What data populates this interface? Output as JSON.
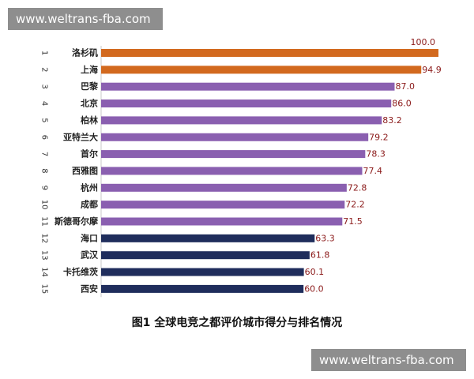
{
  "watermarks": {
    "top": "www.weltrans-fba.com",
    "bottom": "www.weltrans-fba.com"
  },
  "caption": "图1  全球电竞之都评价城市得分与排名情况",
  "colors": {
    "orange": "#d2691e",
    "purple": "#8a5fb0",
    "navy": "#1f2d5c",
    "value_text": "#8b1a1a"
  },
  "chart_data": {
    "type": "bar",
    "orientation": "horizontal",
    "title": "图1  全球电竞之都评价城市得分与排名情况",
    "xlim": [
      0,
      100
    ],
    "grid": false,
    "legend": "none",
    "ranks": [
      "1",
      "2",
      "3",
      "4",
      "5",
      "6",
      "7",
      "8",
      "9",
      "10",
      "11",
      "12",
      "13",
      "14",
      "15"
    ],
    "categories": [
      "洛杉矶",
      "上海",
      "巴黎",
      "北京",
      "柏林",
      "亚特兰大",
      "首尔",
      "西雅图",
      "杭州",
      "成都",
      "斯德哥尔摩",
      "海口",
      "武汉",
      "卡托维茨",
      "西安"
    ],
    "values": [
      100.0,
      94.9,
      87.0,
      86.0,
      83.2,
      79.2,
      78.3,
      77.4,
      72.8,
      72.2,
      71.5,
      63.3,
      61.8,
      60.1,
      60.0
    ],
    "value_labels": [
      "100.0",
      "94.9",
      "87.0",
      "86.0",
      "83.2",
      "79.2",
      "78.3",
      "77.4",
      "72.8",
      "72.2",
      "71.5",
      "63.3",
      "61.8",
      "60.1",
      "60.0"
    ],
    "bar_groups": [
      "orange",
      "orange",
      "purple",
      "purple",
      "purple",
      "purple",
      "purple",
      "purple",
      "purple",
      "purple",
      "purple",
      "navy",
      "navy",
      "navy",
      "navy"
    ]
  }
}
